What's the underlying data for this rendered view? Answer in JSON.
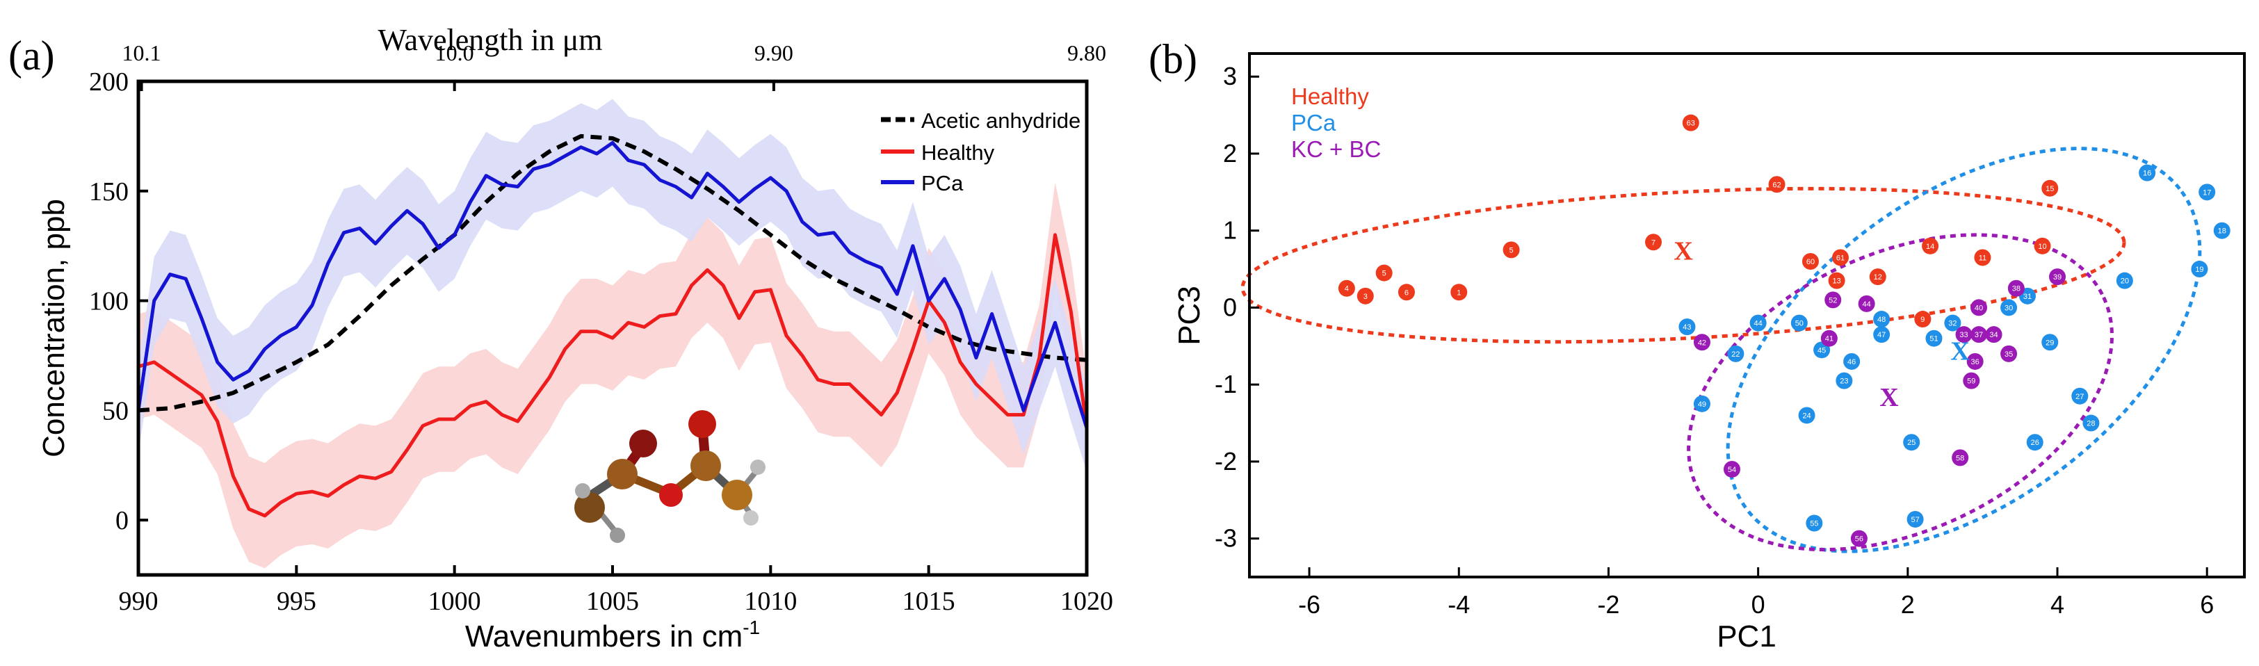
{
  "chart_data": [
    {
      "panel": "(a)",
      "type": "line",
      "xlabel": "Wavenumbers in cm",
      "xlabel_sup": "-1",
      "ylabel": "Concentration, ppb",
      "xlim": [
        990,
        1020
      ],
      "ylim": [
        -25,
        200
      ],
      "xticks": [
        990,
        995,
        1000,
        1005,
        1010,
        1015,
        1020
      ],
      "yticks": [
        0,
        50,
        100,
        150,
        200
      ],
      "top_axis": {
        "label": "Wavelength in  μm",
        "ticks": [
          {
            "label": "10.1",
            "at": 990.1
          },
          {
            "label": "10.0",
            "at": 1000.0
          },
          {
            "label": "9.90",
            "at": 1010.1
          },
          {
            "label": "9.80",
            "at": 1020.0
          }
        ]
      },
      "legend": {
        "position": "top-right",
        "entries": [
          "Acetic anhydride",
          "Healthy",
          "PCa"
        ]
      },
      "colors": {
        "acetic": "#000000",
        "healthy": "#ee1c1c",
        "pca": "#1414d2",
        "healthy_band": "#fbd3d3",
        "pca_band": "#d9dcf8"
      },
      "series": [
        {
          "name": "Acetic anhydride",
          "style": "dashed",
          "x": [
            990,
            991,
            992,
            993,
            994,
            995,
            996,
            997,
            998,
            999,
            1000,
            1001,
            1002,
            1003,
            1004,
            1005,
            1006,
            1007,
            1008,
            1009,
            1010,
            1011,
            1012,
            1013,
            1014,
            1015,
            1016,
            1017,
            1018,
            1019,
            1020
          ],
          "values": [
            50,
            51,
            54,
            58,
            65,
            72,
            80,
            93,
            107,
            119,
            130,
            145,
            158,
            168,
            175,
            174,
            168,
            160,
            151,
            141,
            130,
            119,
            110,
            103,
            96,
            88,
            82,
            78,
            76,
            74,
            73
          ]
        },
        {
          "name": "Healthy",
          "style": "solid",
          "band": 24,
          "x": [
            990,
            990.5,
            991,
            991.5,
            992,
            992.5,
            993,
            993.5,
            994,
            994.5,
            995,
            995.5,
            996,
            996.5,
            997,
            997.5,
            998,
            998.5,
            999,
            999.5,
            1000,
            1000.5,
            1001,
            1001.5,
            1002,
            1002.5,
            1003,
            1003.5,
            1004,
            1004.5,
            1005,
            1005.5,
            1006,
            1006.5,
            1007,
            1007.5,
            1008,
            1008.5,
            1009,
            1009.5,
            1010,
            1010.5,
            1011,
            1011.5,
            1012,
            1012.5,
            1013,
            1013.5,
            1014,
            1014.5,
            1015,
            1015.5,
            1016,
            1016.5,
            1017,
            1017.5,
            1018,
            1018.5,
            1019,
            1019.5,
            1020
          ],
          "values": [
            70,
            72,
            67,
            62,
            57,
            45,
            20,
            5,
            2,
            8,
            12,
            13,
            11,
            16,
            20,
            19,
            22,
            32,
            43,
            46,
            46,
            52,
            54,
            48,
            45,
            55,
            65,
            78,
            86,
            86,
            83,
            90,
            88,
            93,
            94,
            107,
            114,
            107,
            92,
            104,
            105,
            84,
            75,
            64,
            62,
            62,
            55,
            48,
            58,
            78,
            100,
            90,
            72,
            62,
            55,
            48,
            48,
            74,
            130,
            95,
            42
          ]
        },
        {
          "name": "PCa",
          "style": "solid",
          "band": 20,
          "x": [
            990,
            990.5,
            991,
            991.5,
            992,
            992.5,
            993,
            993.5,
            994,
            994.5,
            995,
            995.5,
            996,
            996.5,
            997,
            997.5,
            998,
            998.5,
            999,
            999.5,
            1000,
            1000.5,
            1001,
            1001.5,
            1002,
            1002.5,
            1003,
            1003.5,
            1004,
            1004.5,
            1005,
            1005.5,
            1006,
            1006.5,
            1007,
            1007.5,
            1008,
            1008.5,
            1009,
            1009.5,
            1010,
            1010.5,
            1011,
            1011.5,
            1012,
            1012.5,
            1013,
            1013.5,
            1014,
            1014.5,
            1015,
            1015.5,
            1016,
            1016.5,
            1017,
            1017.5,
            1018,
            1018.5,
            1019,
            1019.5,
            1020
          ],
          "values": [
            50,
            100,
            112,
            110,
            92,
            72,
            64,
            68,
            78,
            84,
            88,
            98,
            117,
            131,
            133,
            126,
            134,
            141,
            135,
            124,
            130,
            145,
            157,
            153,
            152,
            160,
            162,
            166,
            170,
            167,
            172,
            164,
            162,
            155,
            152,
            147,
            158,
            152,
            145,
            151,
            156,
            150,
            136,
            130,
            131,
            122,
            118,
            115,
            103,
            125,
            100,
            110,
            96,
            74,
            94,
            72,
            50,
            70,
            90,
            65,
            42
          ]
        }
      ],
      "inset": "acetic-anhydride-molecule"
    },
    {
      "panel": "(b)",
      "type": "scatter",
      "xlabel": "PC1",
      "ylabel": "PC3",
      "xlim": [
        -6.8,
        6.5
      ],
      "ylim": [
        -3.5,
        3.3
      ],
      "xticks": [
        -6,
        -4,
        -2,
        0,
        2,
        4,
        6
      ],
      "yticks": [
        -3,
        -2,
        -1,
        0,
        1,
        2,
        3
      ],
      "legend": {
        "position": "top-left",
        "entries": [
          "Healthy",
          "PCa",
          "KC + BC"
        ]
      },
      "colors": {
        "healthy": "#ee3a1c",
        "pca": "#1f8fe8",
        "kcbc": "#9b19b4"
      },
      "series": [
        {
          "name": "Healthy",
          "points": [
            {
              "id": "63",
              "x": -0.9,
              "y": 2.4
            },
            {
              "id": "62",
              "x": 0.25,
              "y": 1.6
            },
            {
              "id": "15",
              "x": 3.9,
              "y": 1.55
            },
            {
              "id": "7",
              "x": -1.4,
              "y": 0.85
            },
            {
              "id": "5",
              "x": -3.3,
              "y": 0.75
            },
            {
              "id": "14",
              "x": 2.3,
              "y": 0.8
            },
            {
              "id": "10",
              "x": 3.8,
              "y": 0.8
            },
            {
              "id": "11",
              "x": 3.0,
              "y": 0.65
            },
            {
              "id": "61",
              "x": 1.1,
              "y": 0.65
            },
            {
              "id": "60",
              "x": 0.7,
              "y": 0.6
            },
            {
              "id": "13",
              "x": 1.05,
              "y": 0.35
            },
            {
              "id": "12",
              "x": 1.6,
              "y": 0.4
            },
            {
              "id": "5",
              "x": -5.0,
              "y": 0.45
            },
            {
              "id": "6",
              "x": -4.7,
              "y": 0.2
            },
            {
              "id": "1",
              "x": -4.0,
              "y": 0.2
            },
            {
              "id": "4",
              "x": -5.5,
              "y": 0.25
            },
            {
              "id": "3",
              "x": -5.25,
              "y": 0.15
            },
            {
              "id": "9",
              "x": 2.2,
              "y": -0.15
            }
          ],
          "ellipse": {
            "cx": -1.0,
            "cy": 0.55,
            "rx": 5.9,
            "ry": 0.95,
            "angle_deg": 3
          },
          "centroid": {
            "x": -1.0,
            "y": 0.75
          }
        },
        {
          "name": "PCa",
          "points": [
            {
              "id": "16",
              "x": 5.2,
              "y": 1.75
            },
            {
              "id": "17",
              "x": 6.0,
              "y": 1.5
            },
            {
              "id": "18",
              "x": 6.2,
              "y": 1.0
            },
            {
              "id": "19",
              "x": 5.9,
              "y": 0.5
            },
            {
              "id": "20",
              "x": 4.9,
              "y": 0.35
            },
            {
              "id": "30",
              "x": 3.35,
              "y": 0.0
            },
            {
              "id": "31",
              "x": 3.6,
              "y": 0.15
            },
            {
              "id": "43",
              "x": -0.95,
              "y": -0.25
            },
            {
              "id": "44",
              "x": 0.0,
              "y": -0.2
            },
            {
              "id": "50",
              "x": 0.55,
              "y": -0.2
            },
            {
              "id": "48",
              "x": 1.65,
              "y": -0.15
            },
            {
              "id": "47",
              "x": 1.65,
              "y": -0.35
            },
            {
              "id": "32",
              "x": 2.6,
              "y": -0.2
            },
            {
              "id": "51",
              "x": 2.35,
              "y": -0.4
            },
            {
              "id": "46",
              "x": 1.25,
              "y": -0.7
            },
            {
              "id": "45",
              "x": 0.85,
              "y": -0.55
            },
            {
              "id": "22",
              "x": -0.3,
              "y": -0.6
            },
            {
              "id": "29",
              "x": 3.9,
              "y": -0.45
            },
            {
              "id": "23",
              "x": 1.15,
              "y": -0.95
            },
            {
              "id": "27",
              "x": 4.3,
              "y": -1.15
            },
            {
              "id": "49",
              "x": -0.75,
              "y": -1.25
            },
            {
              "id": "24",
              "x": 0.65,
              "y": -1.4
            },
            {
              "id": "25",
              "x": 2.05,
              "y": -1.75
            },
            {
              "id": "26",
              "x": 3.7,
              "y": -1.75
            },
            {
              "id": "28",
              "x": 4.45,
              "y": -1.5
            },
            {
              "id": "57",
              "x": 2.1,
              "y": -2.75
            },
            {
              "id": "55",
              "x": 0.75,
              "y": -2.8
            }
          ],
          "ellipse": {
            "cx": 2.75,
            "cy": -0.55,
            "rx": 3.6,
            "ry": 2.0,
            "angle_deg": 36
          },
          "centroid": {
            "x": 2.7,
            "y": -0.55
          }
        },
        {
          "name": "KC + BC",
          "points": [
            {
              "id": "39",
              "x": 4.0,
              "y": 0.4
            },
            {
              "id": "38",
              "x": 3.45,
              "y": 0.25
            },
            {
              "id": "40",
              "x": 2.95,
              "y": 0.0
            },
            {
              "id": "42",
              "x": -0.75,
              "y": -0.45
            },
            {
              "id": "41",
              "x": 0.95,
              "y": -0.4
            },
            {
              "id": "52",
              "x": 1.0,
              "y": 0.1
            },
            {
              "id": "44",
              "x": 1.45,
              "y": 0.05
            },
            {
              "id": "33",
              "x": 2.75,
              "y": -0.35
            },
            {
              "id": "37",
              "x": 2.95,
              "y": -0.35
            },
            {
              "id": "34",
              "x": 3.15,
              "y": -0.35
            },
            {
              "id": "35",
              "x": 3.35,
              "y": -0.6
            },
            {
              "id": "36",
              "x": 2.9,
              "y": -0.7
            },
            {
              "id": "59",
              "x": 2.85,
              "y": -0.95
            },
            {
              "id": "58",
              "x": 2.7,
              "y": -1.95
            },
            {
              "id": "54",
              "x": -0.35,
              "y": -2.1
            },
            {
              "id": "56",
              "x": 1.35,
              "y": -3.0
            }
          ],
          "ellipse": {
            "cx": 1.9,
            "cy": -1.1,
            "rx": 3.0,
            "ry": 1.8,
            "angle_deg": 25
          },
          "centroid": {
            "x": 1.75,
            "y": -1.15
          }
        }
      ]
    }
  ]
}
